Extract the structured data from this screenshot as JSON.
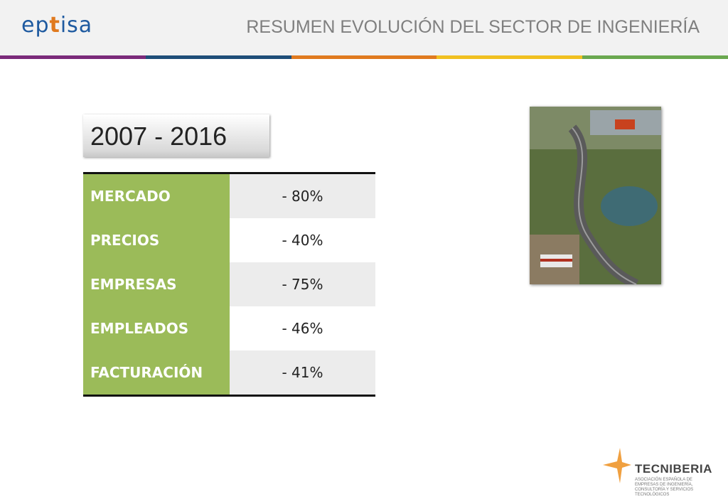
{
  "header": {
    "logo_prefix": "ep",
    "logo_t": "t",
    "logo_suffix": "isa",
    "title": "RESUMEN EVOLUCIÓN DEL SECTOR DE INGENIERÍA",
    "stripe_colors": [
      "#7b2a7a",
      "#1f4e79",
      "#e07a1f",
      "#f0c020",
      "#6aa84f"
    ]
  },
  "period": "2007 - 2016",
  "table": {
    "rows": [
      {
        "label": "MERCADO",
        "value": "- 80%"
      },
      {
        "label": "PRECIOS",
        "value": "- 40%"
      },
      {
        "label": "EMPRESAS",
        "value": "- 75%"
      },
      {
        "label": "EMPLEADOS",
        "value": "- 46%"
      },
      {
        "label": "FACTURACIÓN",
        "value": "- 41%"
      }
    ]
  },
  "footer": {
    "brand": "TECNIBERIA",
    "brand_subtitle": "ASOCIACIÓN ESPAÑOLA DE EMPRESAS DE INGENIERÍA, CONSULTORÍA Y SERVICIOS TECNOLÓGICOS"
  }
}
